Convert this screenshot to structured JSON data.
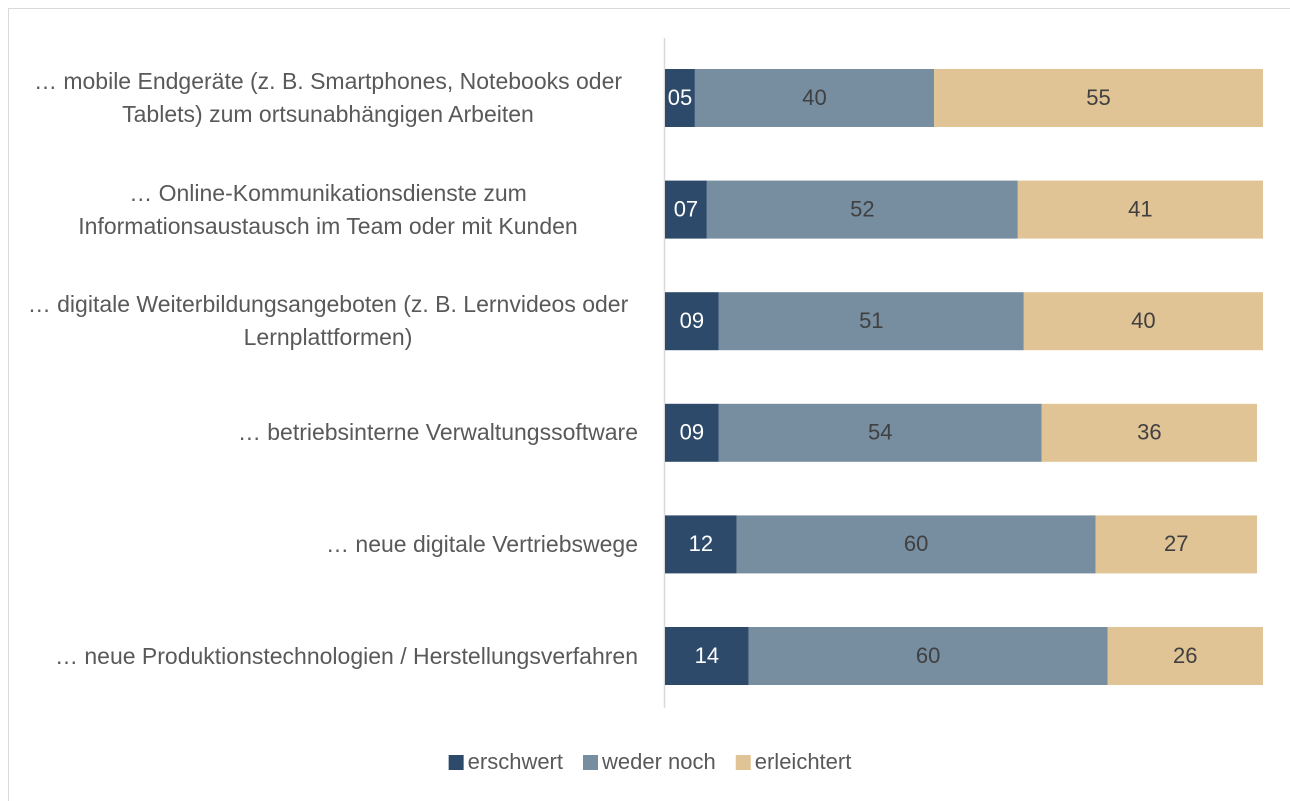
{
  "chart_data": {
    "type": "stacked_bar_horizontal",
    "categories": [
      "… mobile Endgeräte (z. B. Smartphones, Notebooks oder Tablets) zum ortsunabhängigen Arbeiten",
      "… Online-Kommunikationsdienste zum Informationsaustausch im Team oder mit Kunden",
      "… digitale Weiterbildungsangeboten (z. B. Lernvideos oder Lernplattformen)",
      "… betriebsinterne Verwaltungssoftware",
      "… neue digitale Vertriebswege",
      "… neue Produktionstechnologien / Herstellungsverfahren"
    ],
    "series": [
      {
        "name": "erschwert",
        "color": "#2e4a6b",
        "values": [
          5,
          7,
          9,
          9,
          12,
          14
        ],
        "value_labels": [
          "05",
          "07",
          "09",
          "09",
          "12",
          "14"
        ]
      },
      {
        "name": "weder noch",
        "color": "#778da0",
        "values": [
          40,
          52,
          51,
          54,
          60,
          60
        ]
      },
      {
        "name": "erleichtert",
        "color": "#e0c495",
        "values": [
          55,
          41,
          40,
          36,
          27,
          26
        ]
      }
    ],
    "xlim": [
      0,
      100
    ],
    "legend": "bottom"
  }
}
